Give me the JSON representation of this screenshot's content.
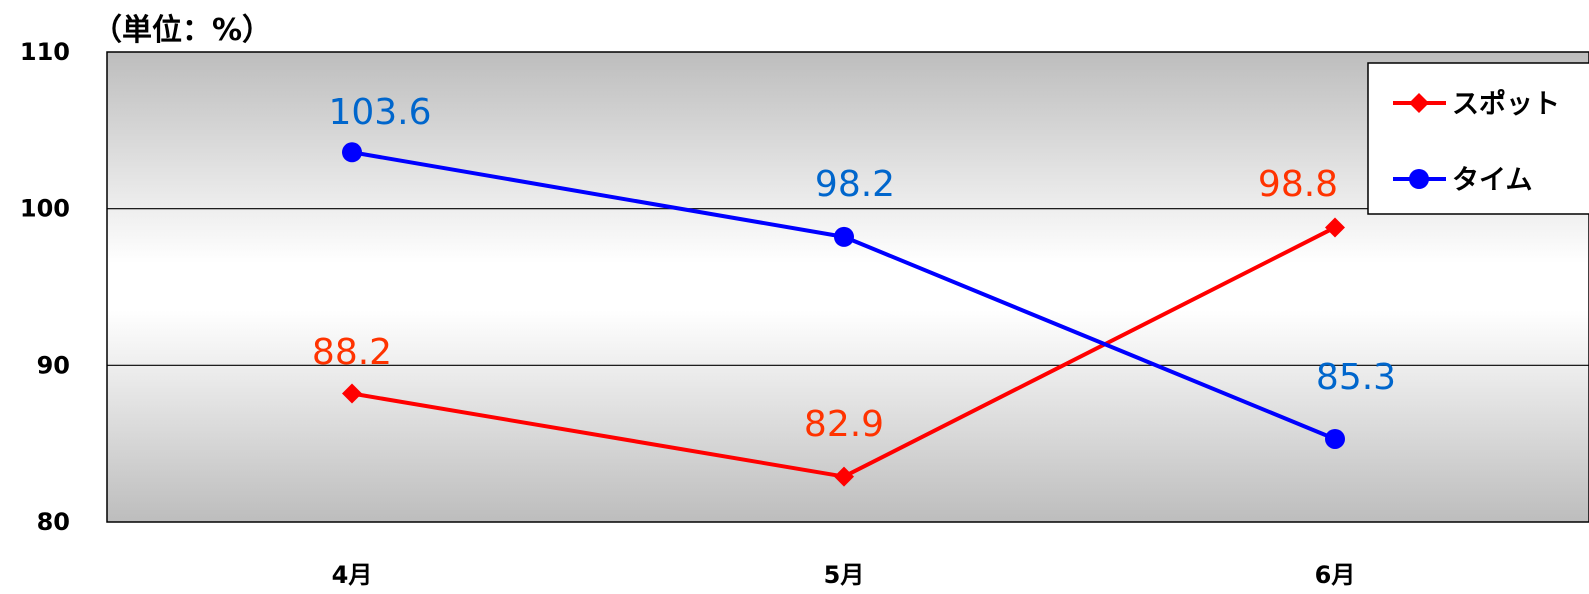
{
  "chart_data": {
    "type": "line",
    "unit_label": "（単位：%）",
    "categories": [
      "4月",
      "5月",
      "6月"
    ],
    "ylim": [
      80,
      110
    ],
    "yticks": [
      80,
      90,
      100,
      110
    ],
    "grid": true,
    "legend_position": "top-right",
    "series": [
      {
        "name": "スポット",
        "values": [
          88.2,
          82.9,
          98.8
        ],
        "labels": [
          "88.2",
          "82.9",
          "98.8"
        ],
        "color": "#ff0000",
        "label_color": "#ff3300",
        "marker": "diamond"
      },
      {
        "name": "タイム",
        "values": [
          103.6,
          98.2,
          85.3
        ],
        "labels": [
          "103.6",
          "98.2",
          "85.3"
        ],
        "color": "#0000ff",
        "label_color": "#0066cc",
        "marker": "circle"
      }
    ]
  }
}
